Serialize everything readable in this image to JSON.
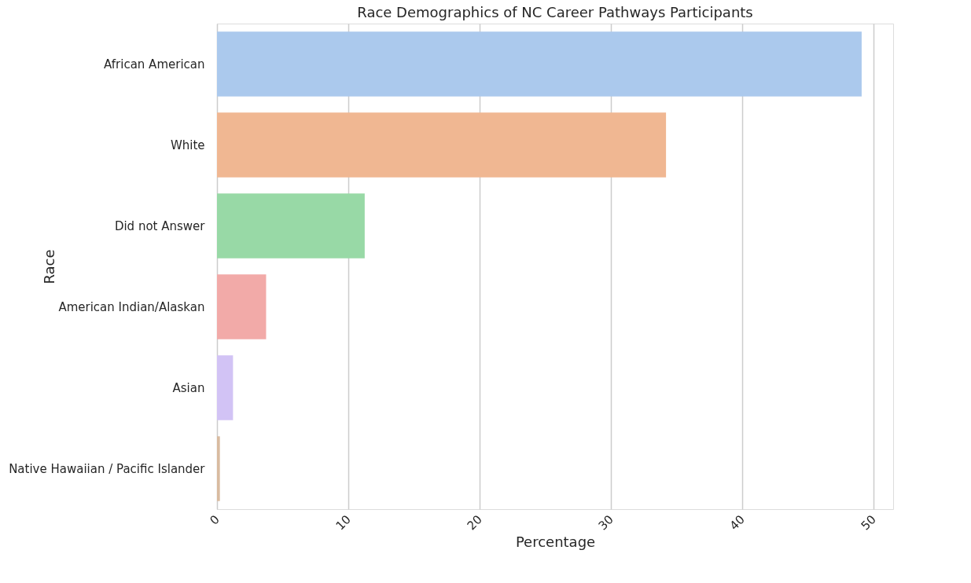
{
  "chart_data": {
    "type": "bar",
    "orientation": "horizontal",
    "title": "Race Demographics of NC Career Pathways Participants",
    "xlabel": "Percentage",
    "ylabel": "Race",
    "categories": [
      "African American",
      "White",
      "Did not Answer",
      "American Indian/Alaskan",
      "Asian",
      "Native Hawaiian / Pacific Islander"
    ],
    "values": [
      49.1,
      34.2,
      11.25,
      3.74,
      1.22,
      0.22
    ],
    "colors": [
      "#abc9ed",
      "#f0b792",
      "#98d9a6",
      "#f2aaa8",
      "#d2c3f5",
      "#d9bba0"
    ],
    "xlim": [
      0,
      51.5
    ],
    "xticks": [
      0,
      10,
      20,
      30,
      40,
      50
    ],
    "grid": "x"
  }
}
